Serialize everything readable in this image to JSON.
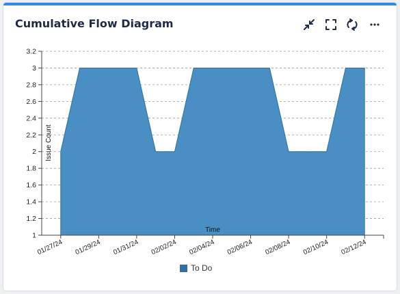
{
  "title": "Cumulative Flow Diagram",
  "icons": {
    "collapse": "collapse-icon",
    "fullscreen": "fullscreen-icon",
    "refresh": "refresh-icon",
    "more": "more-icon"
  },
  "colors": {
    "accent": "#2f8ae6",
    "series": "#4a8fc3",
    "series_dark": "#2f6fa3",
    "title": "#1e2a47"
  },
  "chart_data": {
    "type": "area",
    "title": "",
    "xlabel": "Time",
    "ylabel": "Issue Count",
    "x_ticks": [
      "01/27/24",
      "01/29/24",
      "01/31/24",
      "02/02/24",
      "02/04/24",
      "02/06/24",
      "02/08/24",
      "02/10/24",
      "02/12/24"
    ],
    "y_ticks": [
      "1",
      "1.2",
      "1.4",
      "1.6",
      "1.8",
      "2",
      "2.2",
      "2.4",
      "2.6",
      "2.8",
      "3",
      "3.2"
    ],
    "ylim": [
      1,
      3.2
    ],
    "xlim": [
      "01/26/24",
      "02/13/24"
    ],
    "grid": true,
    "legend_position": "bottom",
    "series": [
      {
        "name": "To Do",
        "x": [
          "01/27/24",
          "01/28/24",
          "01/31/24",
          "02/01/24",
          "02/02/24",
          "02/03/24",
          "02/07/24",
          "02/08/24",
          "02/10/24",
          "02/11/24",
          "02/12/24"
        ],
        "values": [
          2,
          3,
          3,
          2,
          2,
          3,
          3,
          2,
          2,
          3,
          3
        ]
      }
    ]
  }
}
